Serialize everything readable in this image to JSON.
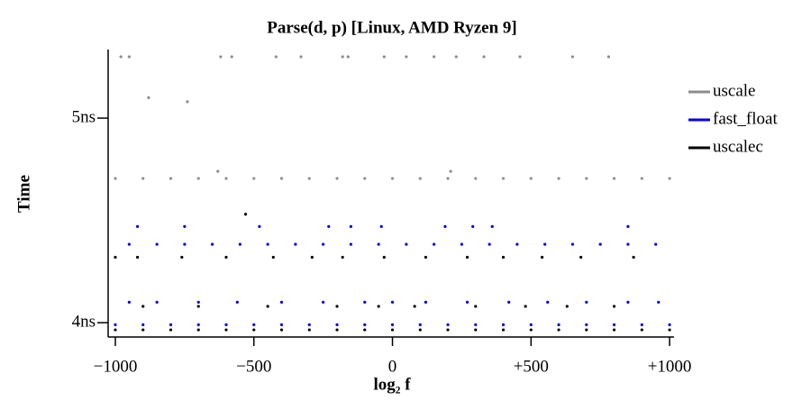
{
  "chart_data": {
    "type": "scatter",
    "title": "Parse(d, p) [Linux, AMD Ryzen 9]",
    "x_label": "log₂ f",
    "y_label": "Time",
    "xlim": [
      -1026,
      1016
    ],
    "ylim": [
      3.93,
      5.335
    ],
    "xticks": [
      {
        "value": -1000,
        "label": "−1000"
      },
      {
        "value": -500,
        "label": "−500"
      },
      0,
      {
        "value": 500,
        "label": "+500"
      },
      {
        "value": 1000,
        "label": "+1000"
      }
    ],
    "yticks": [
      {
        "value": 4,
        "label": "4ns"
      },
      {
        "value": 5,
        "label": "5ns"
      }
    ],
    "legend": "upper right",
    "series": [
      {
        "name": "uscale",
        "color": "#8c8c8c",
        "x": [
          -1000,
          -900,
          -800,
          -700,
          -600,
          -500,
          -400,
          -300,
          -200,
          -100,
          0,
          100,
          200,
          300,
          400,
          500,
          600,
          700,
          800,
          900,
          1000,
          -980,
          -950,
          -620,
          -580,
          -420,
          -330,
          -180,
          -160,
          -30,
          50,
          150,
          230,
          330,
          460,
          650,
          780,
          -880,
          -740,
          -630,
          210
        ],
        "values": [
          4.705,
          4.705,
          4.705,
          4.705,
          4.705,
          4.705,
          4.705,
          4.705,
          4.705,
          4.705,
          4.705,
          4.705,
          4.705,
          4.705,
          4.705,
          4.705,
          4.705,
          4.705,
          4.705,
          4.705,
          4.705,
          5.3,
          5.3,
          5.3,
          5.3,
          5.3,
          5.3,
          5.3,
          5.3,
          5.3,
          5.3,
          5.3,
          5.3,
          5.3,
          5.3,
          5.3,
          5.3,
          5.1,
          5.08,
          4.74,
          4.74
        ]
      },
      {
        "name": "fast_float",
        "color": "#0000ee",
        "x": [
          -950,
          -850,
          -750,
          -650,
          -550,
          -450,
          -350,
          -250,
          -150,
          -50,
          50,
          150,
          250,
          350,
          450,
          550,
          650,
          750,
          850,
          950,
          -1000,
          -900,
          -800,
          -700,
          -600,
          -500,
          -400,
          -300,
          -200,
          -100,
          0,
          100,
          200,
          300,
          400,
          500,
          600,
          700,
          800,
          900,
          1000,
          -950,
          -850,
          -700,
          -560,
          -400,
          -250,
          -100,
          0,
          120,
          270,
          420,
          560,
          700,
          850,
          960,
          -920,
          -750,
          -480,
          -230,
          -150,
          -40,
          190,
          290,
          360,
          850
        ],
        "values": [
          4.383,
          4.383,
          4.383,
          4.383,
          4.383,
          4.383,
          4.383,
          4.383,
          4.383,
          4.383,
          4.383,
          4.383,
          4.383,
          4.383,
          4.383,
          4.383,
          4.383,
          4.383,
          4.383,
          4.383,
          3.99,
          3.99,
          3.99,
          3.99,
          3.99,
          3.99,
          3.99,
          3.99,
          3.99,
          3.99,
          3.99,
          3.99,
          3.99,
          3.99,
          3.99,
          3.99,
          3.99,
          3.99,
          3.99,
          3.99,
          3.99,
          4.1,
          4.1,
          4.1,
          4.1,
          4.1,
          4.1,
          4.1,
          4.1,
          4.1,
          4.1,
          4.1,
          4.1,
          4.1,
          4.1,
          4.1,
          4.47,
          4.47,
          4.47,
          4.47,
          4.47,
          4.47,
          4.47,
          4.47,
          4.47,
          4.47
        ]
      },
      {
        "name": "uscalec",
        "color": "#000000",
        "x": [
          -1000,
          -900,
          -800,
          -700,
          -600,
          -500,
          -400,
          -300,
          -200,
          -100,
          0,
          100,
          200,
          300,
          400,
          500,
          600,
          700,
          800,
          900,
          1000,
          -1000,
          -920,
          -760,
          -600,
          -430,
          -290,
          -180,
          -30,
          120,
          270,
          400,
          540,
          680,
          870,
          -900,
          -700,
          -450,
          -200,
          -50,
          80,
          300,
          480,
          630,
          800,
          -530
        ],
        "values": [
          3.965,
          3.965,
          3.965,
          3.965,
          3.965,
          3.965,
          3.965,
          3.965,
          3.965,
          3.965,
          3.965,
          3.965,
          3.965,
          3.965,
          3.965,
          3.965,
          3.965,
          3.965,
          3.965,
          3.965,
          3.965,
          4.32,
          4.32,
          4.32,
          4.32,
          4.32,
          4.32,
          4.32,
          4.32,
          4.32,
          4.32,
          4.32,
          4.32,
          4.32,
          4.32,
          4.08,
          4.08,
          4.08,
          4.08,
          4.08,
          4.08,
          4.08,
          4.08,
          4.08,
          4.08,
          4.53
        ]
      }
    ]
  }
}
